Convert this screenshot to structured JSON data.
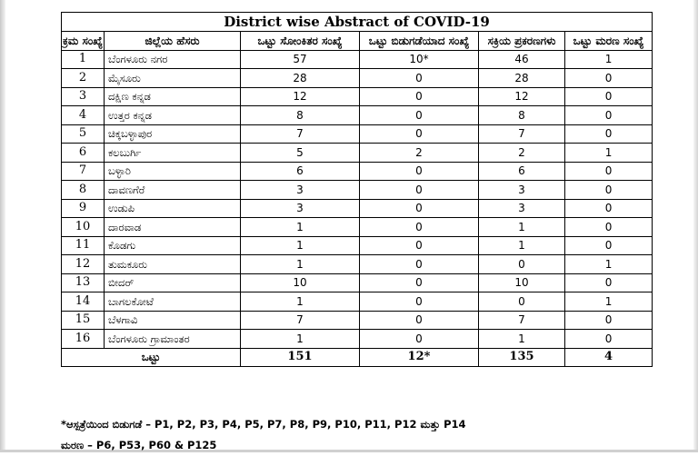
{
  "title": "District wise Abstract of COVID-19",
  "headers": [
    "ಕ್ರಮ ಸಂಖ್ಯೆ",
    "ಜಿಲ್ಲೆಯ ಹೆಸರು",
    "ಒಟ್ಟು ಸೋಂಕಿತರ ಸಂಖ್ಯೆ",
    "ಒಟ್ಟು ಬಿಡುಗಡೆಯಾದ ಸಂಖ್ಯೆ",
    "ಸಕ್ರಿಯ ಪ್ರಕರಣಗಳು",
    "ಒಟ್ಟು ಮರಣ ಸಂಖ್ಯೆ"
  ],
  "rows": [
    {
      "sl": "1",
      "district": "ಬೆಂಗಳೂರು ನಗರ",
      "total": "57",
      "discharged": "10*",
      "active": "46",
      "deaths": "1"
    },
    {
      "sl": "2",
      "district": "ಮೈಸೂರು",
      "total": "28",
      "discharged": "0",
      "active": "28",
      "deaths": "0"
    },
    {
      "sl": "3",
      "district": "ದಕ್ಷಿಣ ಕನ್ನಡ",
      "total": "12",
      "discharged": "0",
      "active": "12",
      "deaths": "0"
    },
    {
      "sl": "4",
      "district": "ಉತ್ತರ ಕನ್ನಡ",
      "total": "8",
      "discharged": "0",
      "active": "8",
      "deaths": "0"
    },
    {
      "sl": "5",
      "district": "ಚಿಕ್ಕಬಳ್ಳಾಪುರ",
      "total": "7",
      "discharged": "0",
      "active": "7",
      "deaths": "0"
    },
    {
      "sl": "6",
      "district": "ಕಲಬುರ್ಗಿ",
      "total": "5",
      "discharged": "2",
      "active": "2",
      "deaths": "1"
    },
    {
      "sl": "7",
      "district": "ಬಳ್ಳಾರಿ",
      "total": "6",
      "discharged": "0",
      "active": "6",
      "deaths": "0"
    },
    {
      "sl": "8",
      "district": "ದಾವಣಗೆರೆ",
      "total": "3",
      "discharged": "0",
      "active": "3",
      "deaths": "0"
    },
    {
      "sl": "9",
      "district": "ಉಡುಪಿ",
      "total": "3",
      "discharged": "0",
      "active": "3",
      "deaths": "0"
    },
    {
      "sl": "10",
      "district": "ದಾರವಾಡ",
      "total": "1",
      "discharged": "0",
      "active": "1",
      "deaths": "0"
    },
    {
      "sl": "11",
      "district": "ಕೊಡಗು",
      "total": "1",
      "discharged": "0",
      "active": "1",
      "deaths": "0"
    },
    {
      "sl": "12",
      "district": "ತುಮಕೂರು",
      "total": "1",
      "discharged": "0",
      "active": "0",
      "deaths": "1"
    },
    {
      "sl": "13",
      "district": "ಬೀದರ್",
      "total": "10",
      "discharged": "0",
      "active": "10",
      "deaths": "0"
    },
    {
      "sl": "14",
      "district": "ಬಾಗಲಕೋಟೆ",
      "total": "1",
      "discharged": "0",
      "active": "0",
      "deaths": "1"
    },
    {
      "sl": "15",
      "district": "ಬೆಳಗಾವಿ",
      "total": "7",
      "discharged": "0",
      "active": "7",
      "deaths": "0"
    },
    {
      "sl": "16",
      "district": "ಬೆಂಗಳೂರು ಗ್ರಾಮಾಂತರ",
      "total": "1",
      "discharged": "0",
      "active": "1",
      "deaths": "0"
    }
  ],
  "totals": {
    "label": "ಒಟ್ಟು",
    "total": "151",
    "discharged": "12*",
    "active": "135",
    "deaths": "4"
  },
  "notes": {
    "discharged_note": "*ಆಸ್ಪತ್ರೆಯಿಂದ ಬಿಡುಗಡೆ – P1, P2, P3, P4, P5, P7, P8, P9, P10, P11, P12 ಮತ್ತು P14",
    "deaths_note": "ಮರಣ – P6, P53, P60 & P125"
  }
}
